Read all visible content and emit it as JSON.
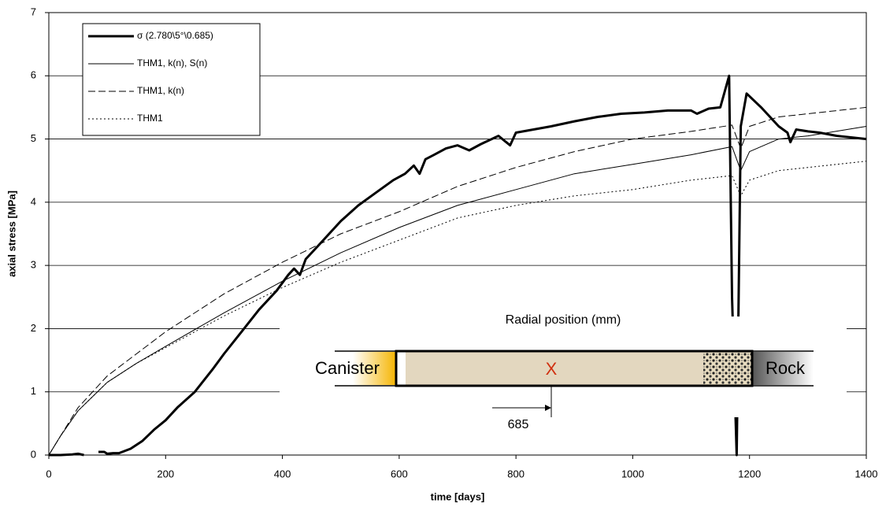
{
  "chart_data": {
    "type": "line",
    "xlabel": "time [days]",
    "ylabel": "axial stress [MPa]",
    "xlim": [
      0,
      1400
    ],
    "xticks": [
      0,
      200,
      400,
      600,
      800,
      1000,
      1200,
      1400
    ],
    "ylim": [
      0,
      7
    ],
    "yticks": [
      0,
      1,
      2,
      3,
      4,
      5,
      6,
      7
    ],
    "grid": true,
    "legend": "upper left",
    "series": [
      {
        "name": "σ (2.780\\5°\\0.685)",
        "color": "#000000",
        "line_style": "solid",
        "line_width": 3,
        "x": [
          0,
          20,
          40,
          50,
          60,
          70,
          85,
          95,
          100,
          110,
          120,
          140,
          160,
          180,
          200,
          220,
          250,
          280,
          300,
          330,
          360,
          390,
          410,
          420,
          430,
          440,
          460,
          480,
          500,
          530,
          560,
          590,
          610,
          625,
          635,
          645,
          660,
          680,
          700,
          720,
          740,
          770,
          790,
          800,
          830,
          860,
          900,
          940,
          980,
          1020,
          1060,
          1100,
          1110,
          1130,
          1150,
          1165,
          1170,
          1178,
          1185,
          1195,
          1220,
          1250,
          1265,
          1270,
          1280,
          1300,
          1320,
          1350,
          1380,
          1400
        ],
        "values": [
          0,
          0,
          0.01,
          0.02,
          0,
          null,
          0.05,
          0.05,
          0.02,
          0.03,
          0.03,
          0.1,
          0.22,
          0.4,
          0.55,
          0.75,
          1.0,
          1.35,
          1.6,
          1.95,
          2.3,
          2.6,
          2.85,
          2.95,
          2.85,
          3.1,
          3.3,
          3.5,
          3.7,
          3.95,
          4.15,
          4.35,
          4.45,
          4.58,
          4.45,
          4.68,
          4.75,
          4.85,
          4.9,
          4.82,
          4.92,
          5.05,
          4.9,
          5.1,
          5.15,
          5.2,
          5.28,
          5.35,
          5.4,
          5.42,
          5.45,
          5.45,
          5.4,
          5.48,
          5.5,
          6.0,
          2.5,
          0,
          5.2,
          5.72,
          5.5,
          5.2,
          5.1,
          4.95,
          5.15,
          5.12,
          5.1,
          5.05,
          5.02,
          5.0
        ]
      },
      {
        "name": "THM1, k(n), S(n)",
        "color": "#000000",
        "line_style": "solid",
        "line_width": 1,
        "x": [
          0,
          20,
          50,
          100,
          150,
          200,
          300,
          400,
          500,
          600,
          700,
          800,
          900,
          1000,
          1100,
          1170,
          1185,
          1200,
          1250,
          1300,
          1400
        ],
        "values": [
          0,
          0.3,
          0.7,
          1.15,
          1.45,
          1.72,
          2.25,
          2.75,
          3.2,
          3.6,
          3.95,
          4.2,
          4.45,
          4.6,
          4.75,
          4.88,
          4.5,
          4.8,
          5.0,
          5.05,
          5.2
        ]
      },
      {
        "name": "THM1, k(n)",
        "color": "#000000",
        "line_style": "dashed",
        "line_width": 1,
        "x": [
          0,
          20,
          50,
          100,
          150,
          200,
          300,
          400,
          500,
          600,
          700,
          800,
          900,
          1000,
          1100,
          1170,
          1185,
          1200,
          1250,
          1300,
          1400
        ],
        "values": [
          0,
          0.3,
          0.75,
          1.25,
          1.6,
          1.95,
          2.55,
          3.05,
          3.5,
          3.85,
          4.25,
          4.55,
          4.8,
          5.0,
          5.12,
          5.22,
          4.85,
          5.2,
          5.35,
          5.4,
          5.5
        ]
      },
      {
        "name": "THM1",
        "color": "#000000",
        "line_style": "dotted",
        "line_width": 1,
        "x": [
          0,
          20,
          50,
          100,
          150,
          200,
          300,
          400,
          500,
          600,
          700,
          800,
          900,
          1000,
          1100,
          1170,
          1185,
          1200,
          1250,
          1300,
          1400
        ],
        "values": [
          0,
          0.3,
          0.7,
          1.15,
          1.45,
          1.7,
          2.2,
          2.65,
          3.05,
          3.4,
          3.75,
          3.95,
          4.1,
          4.2,
          4.35,
          4.42,
          4.1,
          4.35,
          4.5,
          4.55,
          4.65
        ]
      }
    ],
    "annotations": [
      "Radial position (mm)",
      "Canister",
      "Rock",
      "X",
      "685"
    ]
  }
}
